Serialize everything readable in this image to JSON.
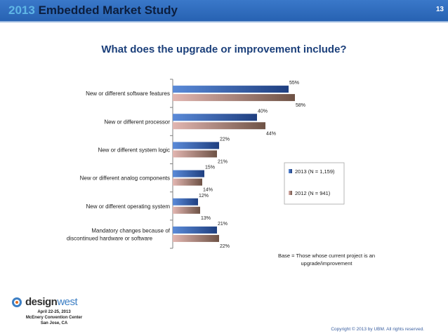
{
  "header": {
    "year": "2013",
    "title": "Embedded Market Study",
    "page_number": "13"
  },
  "chart_data": {
    "type": "bar",
    "orientation": "horizontal",
    "title": "What does the upgrade or improvement include?",
    "categories": [
      "New or different software features",
      "New or different processor",
      "New or different system logic",
      "New or different analog components",
      "New or different operating system",
      "Mandatory changes because of discontinued hardware or software"
    ],
    "series": [
      {
        "name": "2013 (N = 1,159)",
        "values": [
          55,
          40,
          22,
          15,
          12,
          21
        ],
        "labels": [
          "55%",
          "40%",
          "22%",
          "15%",
          "12%",
          "21%"
        ],
        "color": "#3f6fbf"
      },
      {
        "name": "2012 (N = 941)",
        "values": [
          58,
          44,
          21,
          14,
          13,
          22
        ],
        "labels": [
          "58%",
          "44%",
          "21%",
          "14%",
          "13%",
          "22%"
        ],
        "color": "#a07a74"
      }
    ],
    "xlim": [
      0,
      100
    ],
    "grid": false,
    "legend_position": "right"
  },
  "notes": {
    "base": "Base = Those whose current project is an upgrade/improvement"
  },
  "logo": {
    "brand_part1": "design",
    "brand_part2": "west",
    "dates": "April 22-25, 2013",
    "venue": "McEnery Convention Center",
    "city": "San Jose, CA"
  },
  "footer": {
    "copyright": "Copyright © 2013 by UBM. All rights reserved."
  },
  "colors": {
    "header_bg": "#2762b2",
    "title_blue": "#1b3f7a",
    "series_2013": "#3f6fbf",
    "series_2012": "#a07a74"
  }
}
